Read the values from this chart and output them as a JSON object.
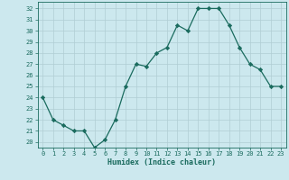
{
  "x": [
    0,
    1,
    2,
    3,
    4,
    5,
    6,
    7,
    8,
    9,
    10,
    11,
    12,
    13,
    14,
    15,
    16,
    17,
    18,
    19,
    20,
    21,
    22,
    23
  ],
  "y": [
    24,
    22,
    21.5,
    21,
    21,
    19.5,
    20.2,
    22,
    25,
    27,
    26.8,
    28,
    28.5,
    30.5,
    30,
    32,
    32,
    32,
    30.5,
    28.5,
    27,
    26.5,
    25,
    25
  ],
  "title": "",
  "xlabel": "Humidex (Indice chaleur)",
  "ylabel": "",
  "ylim": [
    19.5,
    32.6
  ],
  "xlim": [
    -0.5,
    23.5
  ],
  "yticks": [
    20,
    21,
    22,
    23,
    24,
    25,
    26,
    27,
    28,
    29,
    30,
    31,
    32
  ],
  "xticks": [
    0,
    1,
    2,
    3,
    4,
    5,
    6,
    7,
    8,
    9,
    10,
    11,
    12,
    13,
    14,
    15,
    16,
    17,
    18,
    19,
    20,
    21,
    22,
    23
  ],
  "line_color": "#1a6b5e",
  "marker": "D",
  "marker_size": 2.2,
  "bg_color": "#cce8ee",
  "grid_color": "#b0cdd4",
  "label_fontsize": 5.0,
  "xlabel_fontsize": 6.0
}
